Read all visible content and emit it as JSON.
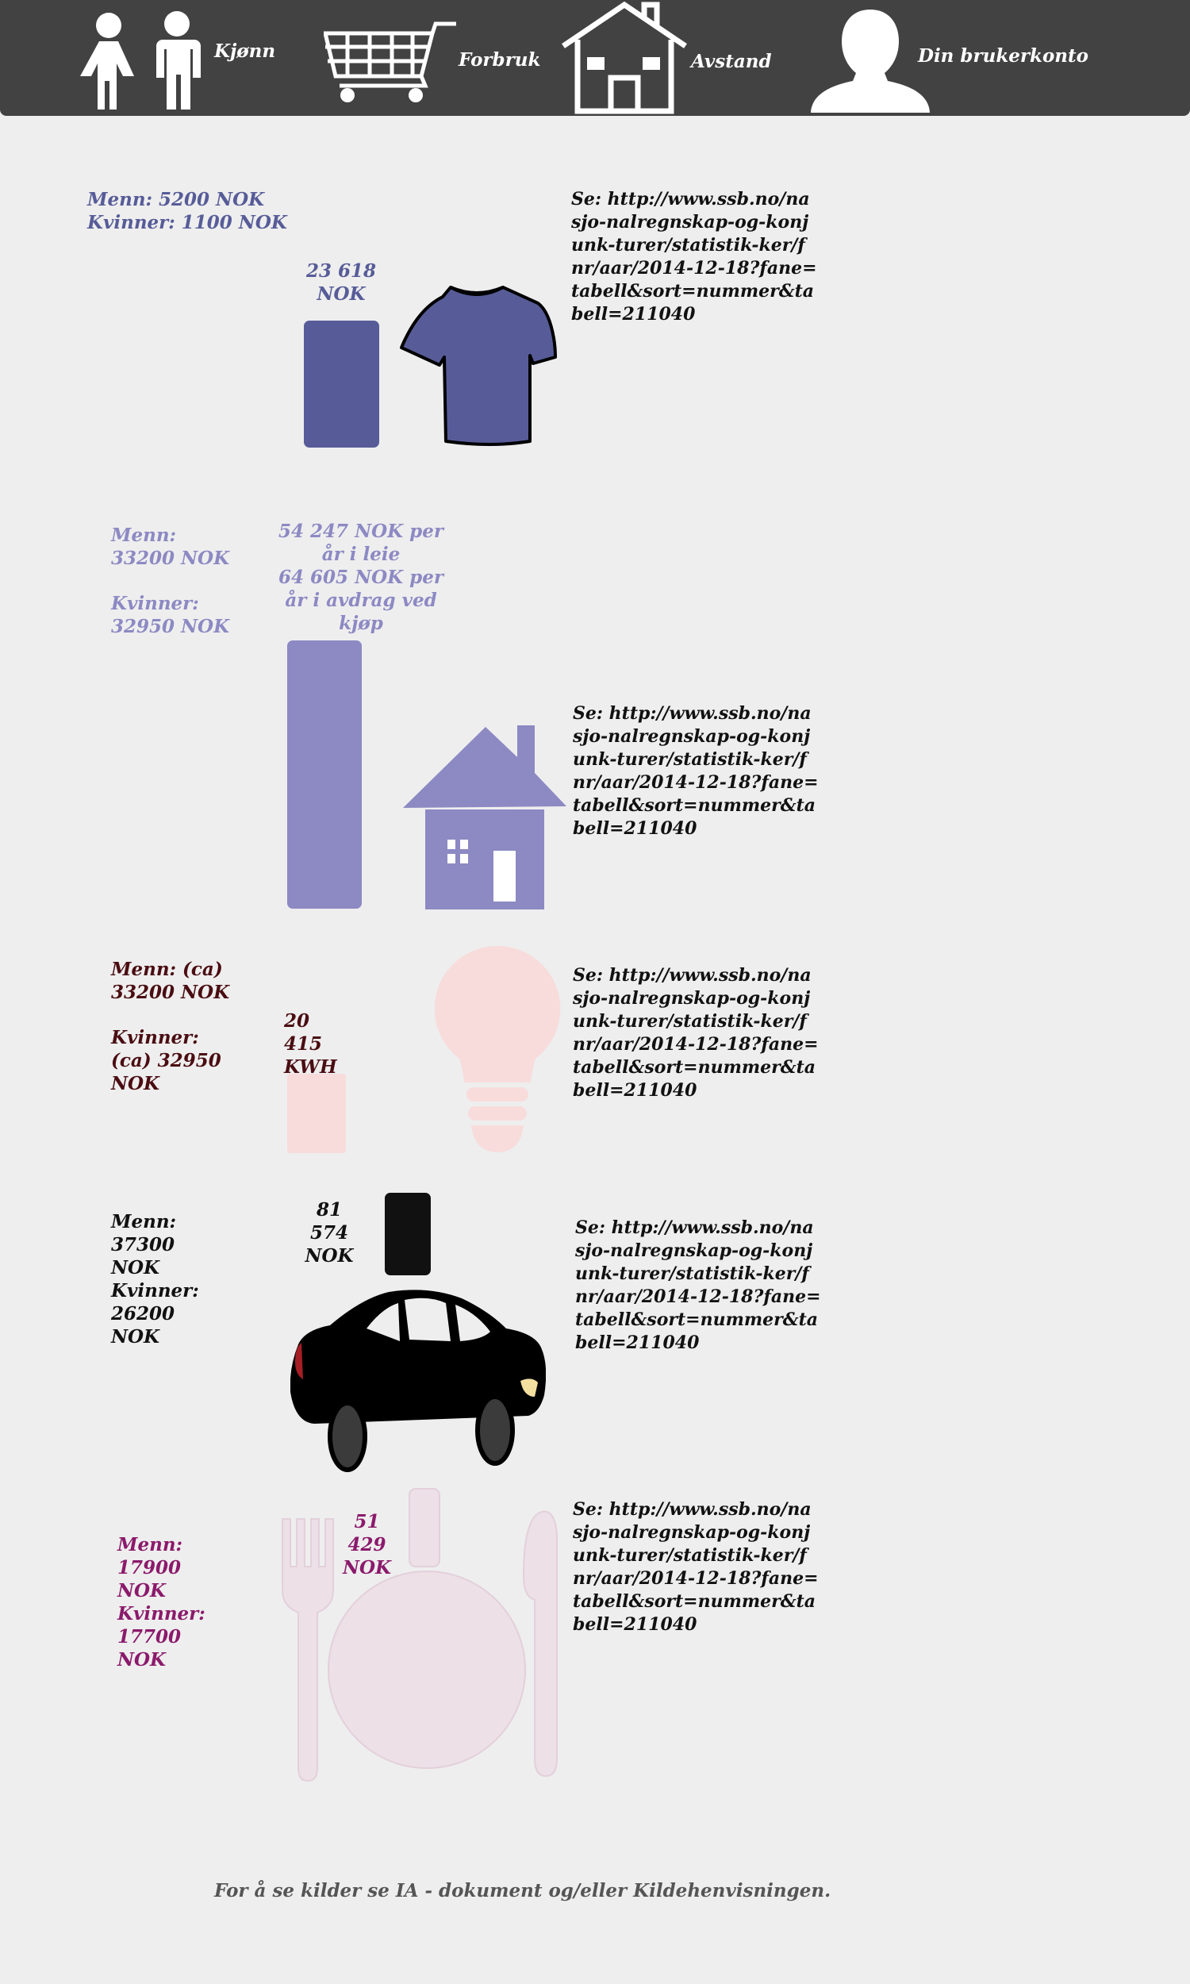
{
  "nav": {
    "items": [
      {
        "label": "Kjønn",
        "icon": "people-icon"
      },
      {
        "label": "Forbruk",
        "icon": "cart-icon"
      },
      {
        "label": "Avstand",
        "icon": "house-icon"
      },
      {
        "label": "Din brukerkonto",
        "icon": "user-icon"
      }
    ]
  },
  "sections": {
    "clothing": {
      "men": "Menn: 5200 NOK",
      "women": "Kvinner: 1100 NOK",
      "total": "23 618 NOK",
      "source": "Se: http://www.ssb.no/nasjo-nalregnskap-og-konjunk-turer/statistik-ker/fnr/aar/2014-12-18?fane=tabell&sort=nummer&tabell=211040",
      "color": "#575c98"
    },
    "housing": {
      "men": "Menn: 33200 NOK",
      "women": "Kvinner: 32950 NOK",
      "total_line1": "54 247 NOK per år i leie",
      "total_line2": "64 605 NOK per år i avdrag ved kjøp",
      "source": "Se: http://www.ssb.no/nasjo-nalregnskap-og-konjunk-turer/statistik-ker/fnr/aar/2014-12-18?fane=tabell&sort=nummer&tabell=211040",
      "color": "#8c89c3"
    },
    "electricity": {
      "men": "Menn: (ca) 33200 NOK",
      "women": "Kvinner: (ca) 32950 NOK",
      "total": "20 415 KWH",
      "source": "Se: http://www.ssb.no/nasjo-nalregnskap-og-konjunk-turer/statistik-ker/fnr/aar/2014-12-18?fane=tabell&sort=nummer&tabell=211040",
      "color": "#f8dcdc"
    },
    "car": {
      "men": "Menn: 37300 NOK",
      "women": "Kvinner: 26200 NOK",
      "total": "81 574 NOK",
      "source": "Se: http://www.ssb.no/nasjo-nalregnskap-og-konjunk-turer/statistik-ker/fnr/aar/2014-12-18?fane=tabell&sort=nummer&tabell=211040",
      "color": "#111111"
    },
    "food": {
      "men": "Menn: 17900 NOK",
      "women": "Kvinner: 17700 NOK",
      "total": "51 429 NOK",
      "source": "Se: http://www.ssb.no/nasjo-nalregnskap-og-konjunk-turer/statistik-ker/fnr/aar/2014-12-18?fane=tabell&sort=nummer&tabell=211040",
      "color": "#ede0e7"
    }
  },
  "footer": {
    "note": "For å se kilder se IA - dokument og/eller Kildehenvisningen."
  }
}
